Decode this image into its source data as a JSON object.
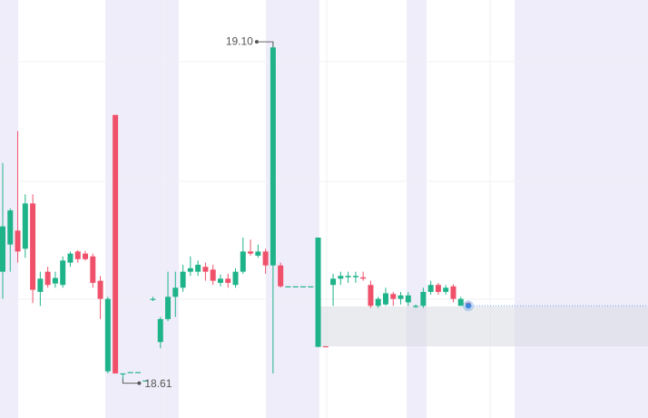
{
  "chart_data": {
    "type": "candlestick",
    "ylim": [
      18.56,
      19.16
    ],
    "up_color": "#1fb38a",
    "down_color": "#f0516a",
    "open": [
      18.77,
      18.809,
      18.829,
      18.803,
      18.868,
      18.741,
      18.77,
      18.753,
      18.751,
      18.783,
      18.799,
      18.796,
      18.792,
      18.757,
      18.627,
      18.995,
      18.624,
      18.626,
      18.626,
      18.614,
      18.731,
      18.669,
      18.702,
      18.734,
      18.747,
      18.77,
      18.77,
      18.777,
      18.773,
      18.754,
      18.76,
      18.751,
      18.77,
      18.799,
      18.793,
      18.799,
      18.779,
      18.779,
      18.749,
      18.749,
      18.749,
      18.749,
      18.662,
      18.663,
      18.751,
      18.76,
      18.762,
      18.762,
      18.762,
      18.751,
      18.721,
      18.723,
      18.738,
      18.731,
      18.726,
      18.721,
      18.721,
      18.741,
      18.751,
      18.741,
      18.749,
      18.721,
      18.725
    ],
    "high": [
      18.926,
      18.861,
      18.972,
      18.881,
      18.881,
      18.77,
      18.777,
      18.77,
      18.792,
      18.799,
      18.801,
      18.8,
      18.796,
      18.764,
      18.734,
      18.995,
      18.624,
      18.626,
      18.626,
      18.614,
      18.734,
      18.705,
      18.77,
      18.77,
      18.78,
      18.792,
      18.786,
      18.783,
      18.78,
      18.766,
      18.767,
      18.775,
      18.819,
      18.816,
      18.809,
      18.803,
      19.1,
      18.783,
      18.749,
      18.749,
      18.749,
      18.749,
      18.819,
      18.663,
      18.767,
      18.77,
      18.77,
      18.77,
      18.77,
      18.757,
      18.734,
      18.747,
      18.741,
      18.741,
      18.741,
      18.723,
      18.747,
      18.757,
      18.754,
      18.751,
      18.752,
      18.734,
      18.727
    ],
    "low": [
      18.731,
      18.77,
      18.783,
      18.79,
      18.725,
      18.721,
      18.747,
      18.747,
      18.747,
      18.777,
      18.783,
      18.786,
      18.747,
      18.702,
      18.624,
      18.624,
      18.61,
      18.626,
      18.626,
      18.614,
      18.728,
      18.66,
      18.699,
      18.705,
      18.741,
      18.764,
      18.764,
      18.757,
      18.751,
      18.749,
      18.747,
      18.747,
      18.767,
      18.793,
      18.79,
      18.767,
      18.624,
      18.747,
      18.749,
      18.749,
      18.749,
      18.749,
      18.662,
      18.662,
      18.721,
      18.751,
      18.754,
      18.754,
      18.757,
      18.718,
      18.718,
      18.721,
      18.721,
      18.723,
      18.721,
      18.718,
      18.718,
      18.737,
      18.737,
      18.737,
      18.726,
      18.721,
      18.718
    ],
    "close": [
      18.835,
      18.858,
      18.799,
      18.868,
      18.744,
      18.76,
      18.751,
      18.761,
      18.786,
      18.796,
      18.788,
      18.788,
      18.754,
      18.731,
      18.731,
      18.624,
      18.624,
      18.626,
      18.626,
      18.614,
      18.731,
      18.702,
      18.734,
      18.747,
      18.77,
      18.775,
      18.78,
      18.77,
      18.757,
      18.76,
      18.754,
      18.77,
      18.799,
      18.796,
      18.799,
      18.779,
      19.092,
      18.749,
      18.749,
      18.749,
      18.749,
      18.749,
      18.819,
      18.662,
      18.76,
      18.764,
      18.764,
      18.764,
      18.76,
      18.721,
      18.731,
      18.739,
      18.731,
      18.736,
      18.736,
      18.721,
      18.741,
      18.751,
      18.741,
      18.747,
      18.731,
      18.731,
      18.721
    ],
    "max_label": {
      "value": 19.1,
      "label": "19.10"
    },
    "min_label": {
      "value": 18.61,
      "label": "18.61"
    }
  }
}
